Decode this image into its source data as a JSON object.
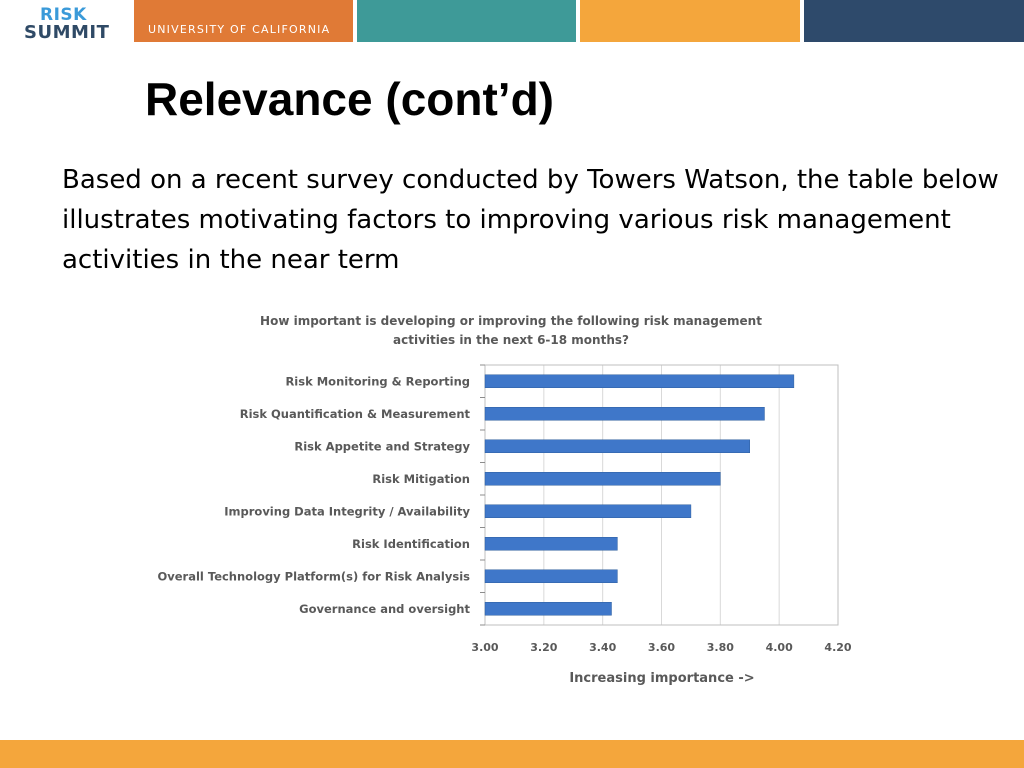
{
  "header": {
    "logo_line1": "RISK",
    "logo_line2": "SUMMIT",
    "organization": "UNIVERSITY OF CALIFORNIA",
    "colors": {
      "orange": "#e07a36",
      "teal": "#3e9a98",
      "yellow": "#f4a63c",
      "navy": "#2e4a6b"
    }
  },
  "slide": {
    "title": "Relevance (cont’d)",
    "intro": "Based on a recent survey conducted by Towers Watson, the table below illustrates motivating factors to improving various risk management activities in the near term"
  },
  "chart_data": {
    "type": "bar",
    "orientation": "horizontal",
    "title_lines": [
      "How important is developing or improving the following risk management",
      "activities in the next 6-18 months?"
    ],
    "xlabel": "Increasing importance ->",
    "categories": [
      "Risk Monitoring & Reporting",
      "Risk Quantification & Measurement",
      "Risk Appetite and Strategy",
      "Risk Mitigation",
      "Improving Data Integrity / Availability",
      "Risk Identification",
      "Overall Technology Platform(s) for Risk Analysis",
      "Governance and oversight"
    ],
    "values": [
      4.05,
      3.95,
      3.9,
      3.8,
      3.7,
      3.45,
      3.45,
      3.43
    ],
    "xlim": [
      3.0,
      4.2
    ],
    "xticks": [
      "3.00",
      "3.20",
      "3.40",
      "3.60",
      "3.80",
      "4.00",
      "4.20"
    ],
    "grid": true,
    "bar_color": "#3f77c9"
  }
}
